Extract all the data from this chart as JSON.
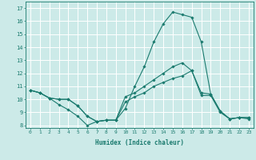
{
  "title": "",
  "xlabel": "Humidex (Indice chaleur)",
  "ylabel": "",
  "background_color": "#cceae8",
  "grid_color": "#ffffff",
  "line_color": "#1a7a6e",
  "xlim": [
    -0.5,
    23.5
  ],
  "ylim": [
    7.8,
    17.5
  ],
  "yticks": [
    8,
    9,
    10,
    11,
    12,
    13,
    14,
    15,
    16,
    17
  ],
  "xticks": [
    0,
    1,
    2,
    3,
    4,
    5,
    6,
    7,
    8,
    9,
    10,
    11,
    12,
    13,
    14,
    15,
    16,
    17,
    18,
    19,
    20,
    21,
    22,
    23
  ],
  "xtick_labels": [
    "0",
    "1",
    "2",
    "3",
    "4",
    "5",
    "6",
    "7",
    "8",
    "9",
    "10",
    "11",
    "12",
    "13",
    "14",
    "15",
    "16",
    "17",
    "18",
    "19",
    "20",
    "21",
    "22",
    "23"
  ],
  "series": [
    {
      "x": [
        0,
        1,
        2,
        3,
        4,
        5,
        6,
        7,
        8,
        9,
        10,
        11,
        12,
        13,
        14,
        15,
        16,
        17,
        18,
        19,
        20,
        21,
        22,
        23
      ],
      "y": [
        10.7,
        10.5,
        10.1,
        9.6,
        9.2,
        8.7,
        8.0,
        8.3,
        8.4,
        8.4,
        9.3,
        11.0,
        12.5,
        14.4,
        15.8,
        16.7,
        16.5,
        16.3,
        14.4,
        10.4,
        9.1,
        8.5,
        8.6,
        8.6
      ]
    },
    {
      "x": [
        0,
        1,
        2,
        3,
        4,
        5,
        6,
        7,
        8,
        9,
        10,
        11,
        12,
        13,
        14,
        15,
        16,
        17,
        18,
        19,
        20,
        21,
        22,
        23
      ],
      "y": [
        10.7,
        10.5,
        10.1,
        10.0,
        10.0,
        9.5,
        8.7,
        8.3,
        8.4,
        8.4,
        10.2,
        10.5,
        11.0,
        11.5,
        12.0,
        12.5,
        12.8,
        12.2,
        10.5,
        10.4,
        9.1,
        8.5,
        8.6,
        8.6
      ]
    },
    {
      "x": [
        0,
        1,
        2,
        3,
        4,
        5,
        6,
        7,
        8,
        9,
        10,
        11,
        12,
        13,
        14,
        15,
        16,
        17,
        18,
        19,
        20,
        21,
        22,
        23
      ],
      "y": [
        10.7,
        10.5,
        10.1,
        10.0,
        10.0,
        9.5,
        8.7,
        8.3,
        8.4,
        8.4,
        9.8,
        10.2,
        10.5,
        11.0,
        11.3,
        11.6,
        11.8,
        12.2,
        10.3,
        10.3,
        9.0,
        8.5,
        8.6,
        8.5
      ]
    }
  ]
}
